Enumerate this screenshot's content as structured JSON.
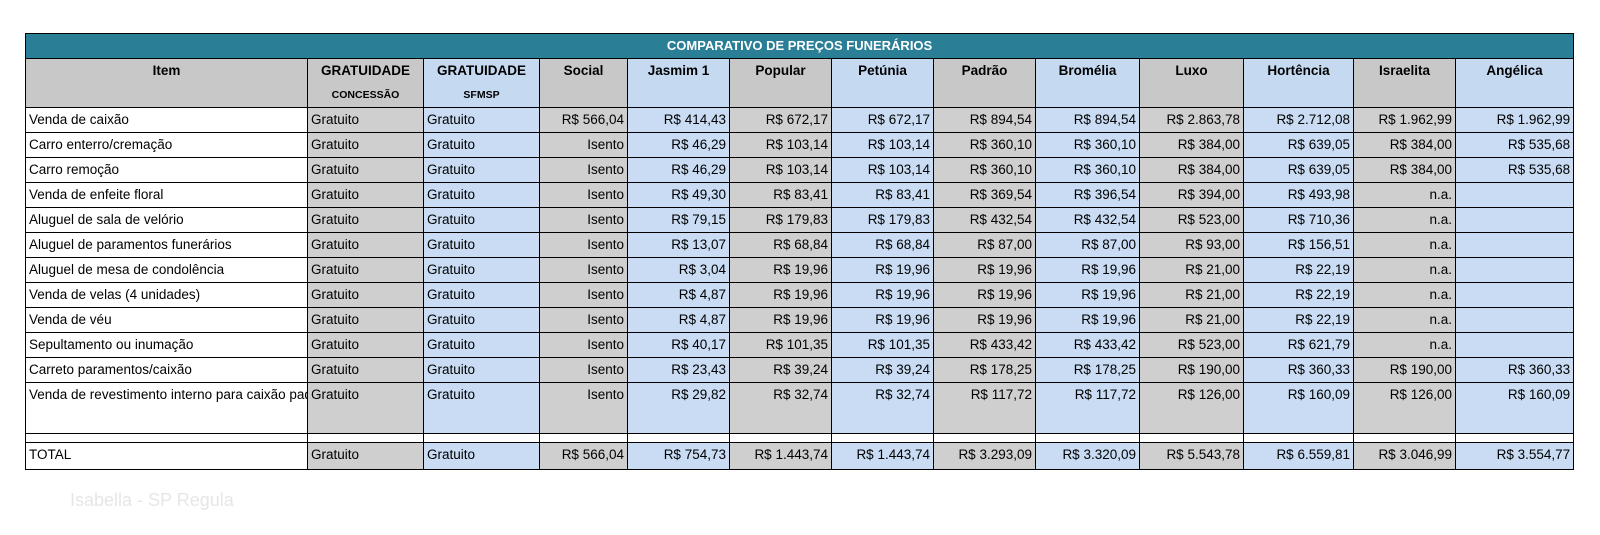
{
  "title": "COMPARATIVO DE PREÇOS FUNERÁRIOS",
  "columns": [
    {
      "label": "Item",
      "sub": ""
    },
    {
      "label": "GRATUIDADE",
      "sub": "CONCESSÃO"
    },
    {
      "label": "GRATUIDADE",
      "sub": "SFMSP"
    },
    {
      "label": "Social",
      "sub": ""
    },
    {
      "label": "Jasmim 1",
      "sub": ""
    },
    {
      "label": "Popular",
      "sub": ""
    },
    {
      "label": "Petúnia",
      "sub": ""
    },
    {
      "label": "Padrão",
      "sub": ""
    },
    {
      "label": "Bromélia",
      "sub": ""
    },
    {
      "label": "Luxo",
      "sub": ""
    },
    {
      "label": "Hortência",
      "sub": ""
    },
    {
      "label": "Israelita",
      "sub": ""
    },
    {
      "label": "Angélica",
      "sub": ""
    }
  ],
  "rows": [
    [
      "Venda de caixão",
      "Gratuito",
      "Gratuito",
      "R$ 566,04",
      "R$ 414,43",
      "R$ 672,17",
      "R$ 672,17",
      "R$ 894,54",
      "R$ 894,54",
      "R$ 2.863,78",
      "R$ 2.712,08",
      "R$ 1.962,99",
      "R$ 1.962,99"
    ],
    [
      "Carro enterro/cremação",
      "Gratuito",
      "Gratuito",
      "Isento",
      "R$ 46,29",
      "R$ 103,14",
      "R$ 103,14",
      "R$ 360,10",
      "R$ 360,10",
      "R$ 384,00",
      "R$ 639,05",
      "R$ 384,00",
      "R$ 535,68"
    ],
    [
      "Carro remoção",
      "Gratuito",
      "Gratuito",
      "Isento",
      "R$ 46,29",
      "R$ 103,14",
      "R$ 103,14",
      "R$ 360,10",
      "R$ 360,10",
      "R$ 384,00",
      "R$ 639,05",
      "R$ 384,00",
      "R$ 535,68"
    ],
    [
      "Venda de enfeite floral",
      "Gratuito",
      "Gratuito",
      "Isento",
      "R$ 49,30",
      "R$ 83,41",
      "R$ 83,41",
      "R$ 369,54",
      "R$ 396,54",
      "R$ 394,00",
      "R$ 493,98",
      "n.a.",
      ""
    ],
    [
      "Aluguel de sala de velório",
      "Gratuito",
      "Gratuito",
      "Isento",
      "R$ 79,15",
      "R$ 179,83",
      "R$ 179,83",
      "R$ 432,54",
      "R$ 432,54",
      "R$ 523,00",
      "R$ 710,36",
      "n.a.",
      ""
    ],
    [
      "Aluguel de paramentos funerários",
      "Gratuito",
      "Gratuito",
      "Isento",
      "R$ 13,07",
      "R$ 68,84",
      "R$ 68,84",
      "R$ 87,00",
      "R$ 87,00",
      "R$ 93,00",
      "R$ 156,51",
      "n.a.",
      ""
    ],
    [
      "Aluguel de mesa de condolência",
      "Gratuito",
      "Gratuito",
      "Isento",
      "R$ 3,04",
      "R$ 19,96",
      "R$ 19,96",
      "R$ 19,96",
      "R$ 19,96",
      "R$ 21,00",
      "R$ 22,19",
      "n.a.",
      ""
    ],
    [
      "Venda de velas (4 unidades)",
      "Gratuito",
      "Gratuito",
      "Isento",
      "R$ 4,87",
      "R$ 19,96",
      "R$ 19,96",
      "R$ 19,96",
      "R$ 19,96",
      "R$ 21,00",
      "R$ 22,19",
      "n.a.",
      ""
    ],
    [
      "Venda de véu",
      "Gratuito",
      "Gratuito",
      "Isento",
      "R$ 4,87",
      "R$ 19,96",
      "R$ 19,96",
      "R$ 19,96",
      "R$ 19,96",
      "R$ 21,00",
      "R$ 22,19",
      "n.a.",
      ""
    ],
    [
      "Sepultamento ou inumação",
      "Gratuito",
      "Gratuito",
      "Isento",
      "R$ 40,17",
      "R$ 101,35",
      "R$ 101,35",
      "R$ 433,42",
      "R$ 433,42",
      "R$ 523,00",
      "R$ 621,79",
      "n.a.",
      ""
    ],
    [
      "Carreto paramentos/caixão",
      "Gratuito",
      "Gratuito",
      "Isento",
      "R$ 23,43",
      "R$ 39,24",
      "R$ 39,24",
      "R$ 178,25",
      "R$ 178,25",
      "R$ 190,00",
      "R$ 360,33",
      "R$ 190,00",
      "R$ 360,33"
    ],
    [
      "Venda de revestimento interno para caixão padrão",
      "Gratuito",
      "Gratuito",
      "Isento",
      "R$ 29,82",
      "R$ 32,74",
      "R$ 32,74",
      "R$ 117,72",
      "R$ 117,72",
      "R$ 126,00",
      "R$ 160,09",
      "R$ 126,00",
      "R$ 160,09"
    ]
  ],
  "total": [
    "TOTAL",
    "Gratuito",
    "Gratuito",
    "R$ 566,04",
    "R$ 754,73",
    "R$ 1.443,74",
    "R$ 1.443,74",
    "R$ 3.293,09",
    "R$ 3.320,09",
    "R$ 5.543,78",
    "R$ 6.559,81",
    "R$ 3.046,99",
    "R$ 3.554,77"
  ],
  "watermark": "Isabella - SP Regula",
  "colors": {
    "title_bar": "#2a7f96",
    "grey_column": "#cfcfcf",
    "blue_column": "#c9dcf3"
  }
}
